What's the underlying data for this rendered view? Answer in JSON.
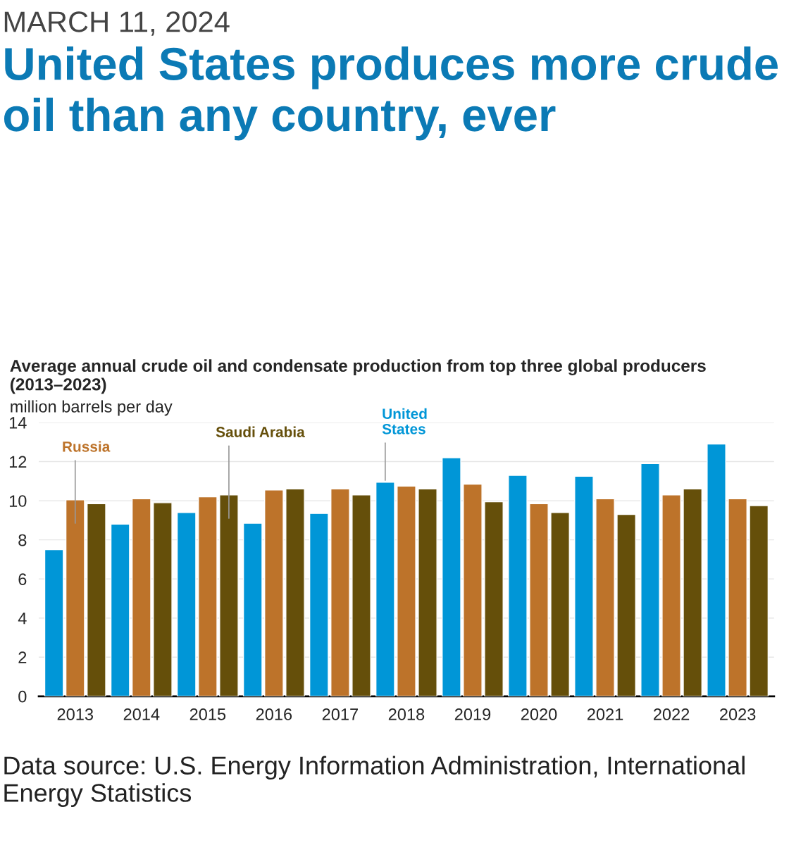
{
  "chart_data": {
    "type": "bar",
    "title": "United States produces more crude oil than any country, ever",
    "subtitle": "Average annual crude oil and condensate production from top three global producers (2013–2023)",
    "ylabel": "million barrels per day",
    "annotations": [
      "MARCH 11, 2024",
      "Data source: U.S. Energy Information Administration, International Energy Statistics"
    ],
    "categories": [
      "2013",
      "2014",
      "2015",
      "2016",
      "2017",
      "2018",
      "2019",
      "2020",
      "2021",
      "2022",
      "2023"
    ],
    "series": [
      {
        "name": "United States",
        "color": "#0096d7",
        "values": [
          7.5,
          8.8,
          9.4,
          8.85,
          9.35,
          10.95,
          12.2,
          11.3,
          11.25,
          11.9,
          12.9
        ]
      },
      {
        "name": "Russia",
        "color": "#bd732a",
        "values": [
          10.05,
          10.1,
          10.2,
          10.55,
          10.6,
          10.75,
          10.85,
          9.85,
          10.1,
          10.3,
          10.1
        ]
      },
      {
        "name": "Saudi Arabia",
        "color": "#654f0a",
        "values": [
          9.85,
          9.9,
          10.3,
          10.6,
          10.3,
          10.6,
          9.95,
          9.4,
          9.3,
          10.6,
          9.75
        ]
      }
    ],
    "ylim": [
      0,
      14
    ],
    "yticks": [
      0,
      2,
      4,
      6,
      8,
      10,
      12,
      14
    ],
    "grid": "y"
  }
}
